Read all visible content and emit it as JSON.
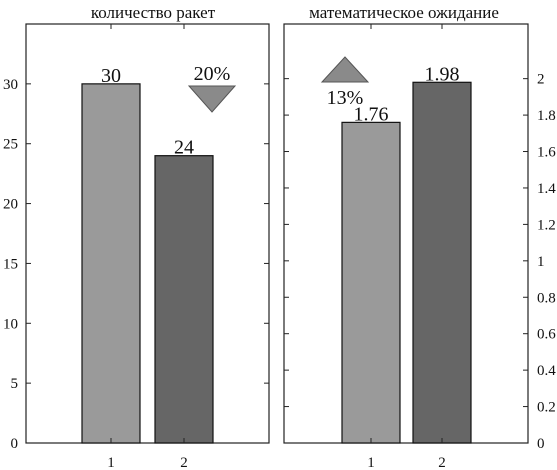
{
  "chart_data": [
    {
      "type": "bar",
      "title": "количество ракет",
      "categories": [
        "1",
        "2"
      ],
      "values": [
        30,
        24
      ],
      "data_labels": [
        "30",
        "24"
      ],
      "ylim": [
        0,
        35
      ],
      "yticks": [
        "0",
        "5",
        "10",
        "15",
        "20",
        "25",
        "30"
      ],
      "y_axis_side": "left",
      "grid": false,
      "bar_colors": [
        "#9a9a9a",
        "#666666"
      ],
      "annotation": {
        "text": "20%",
        "direction": "down",
        "color": "#8a8a8a"
      }
    },
    {
      "type": "bar",
      "title": "математическое ожидание",
      "categories": [
        "1",
        "2"
      ],
      "values": [
        1.76,
        1.98
      ],
      "data_labels": [
        "1.76",
        "1.98"
      ],
      "ylim": [
        0,
        2.3
      ],
      "yticks": [
        "0",
        "0.2",
        "0.4",
        "0.6",
        "0.8",
        "1",
        "1.2",
        "1.4",
        "1.6",
        "1.8",
        "2"
      ],
      "y_axis_side": "right",
      "grid": false,
      "bar_colors": [
        "#9a9a9a",
        "#666666"
      ],
      "annotation": {
        "text": "13%",
        "direction": "up",
        "color": "#8a8a8a"
      }
    }
  ]
}
